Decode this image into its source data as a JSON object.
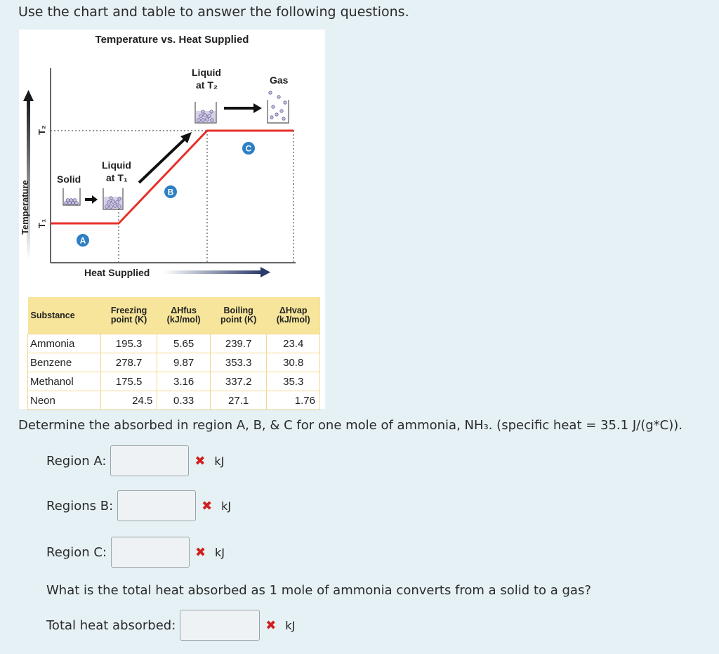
{
  "intro": "Use the chart and table to answer the following questions.",
  "figure": {
    "title": "Temperature vs. Heat Supplied",
    "y_label": "Temperature",
    "x_label": "Heat Supplied",
    "t2_label": "T₂",
    "t1_label": "T₁",
    "phase_labels": {
      "solid": "Solid",
      "liquid_t1_line1": "Liquid",
      "liquid_t1_line2": "at T₁",
      "liquid_t2_line1": "Liquid",
      "liquid_t2_line2": "at T₂",
      "gas": "Gas"
    },
    "regions": {
      "a": "A",
      "b": "B",
      "c": "C"
    },
    "colors": {
      "curve": "#e8302a",
      "region_marker": "#2e7fc4",
      "header": "#f6e59a"
    }
  },
  "table": {
    "headers": {
      "substance": "Substance",
      "freezing_1": "Freezing",
      "freezing_2": "point (K)",
      "fus_1": "ΔHfus",
      "fus_2": "(kJ/mol)",
      "boiling_1": "Boiling",
      "boiling_2": "point (K)",
      "vap_1": "ΔHvap",
      "vap_2": "(kJ/mol)"
    },
    "rows": [
      {
        "name": "Ammonia",
        "freezing": "195.3",
        "fus": "5.65",
        "boiling": "239.7",
        "vap": "23.4"
      },
      {
        "name": "Benzene",
        "freezing": "278.7",
        "fus": "9.87",
        "boiling": "353.3",
        "vap": "30.8"
      },
      {
        "name": "Methanol",
        "freezing": "175.5",
        "fus": "3.16",
        "boiling": "337.2",
        "vap": "35.3"
      },
      {
        "name": "Neon",
        "freezing": "24.5",
        "fus": "0.33",
        "boiling": "27.1",
        "vap": "1.76"
      }
    ]
  },
  "question": "Determine the absorbed in region A, B, & C for one mole of ammonia, NH₃. (specific heat = 35.1 J/(g*C)).",
  "answers": [
    {
      "label": "Region A:",
      "value": "",
      "unit": "kJ",
      "mark": "✖"
    },
    {
      "label": "Regions B:",
      "value": "",
      "unit": "kJ",
      "mark": "✖"
    },
    {
      "label": "Region C:",
      "value": "",
      "unit": "kJ",
      "mark": "✖"
    }
  ],
  "question2": "What is the total heat absorbed as 1 mole of ammonia converts from a solid to a gas?",
  "total": {
    "label": "Total heat absorbed:",
    "value": "",
    "unit": "kJ",
    "mark": "✖"
  }
}
